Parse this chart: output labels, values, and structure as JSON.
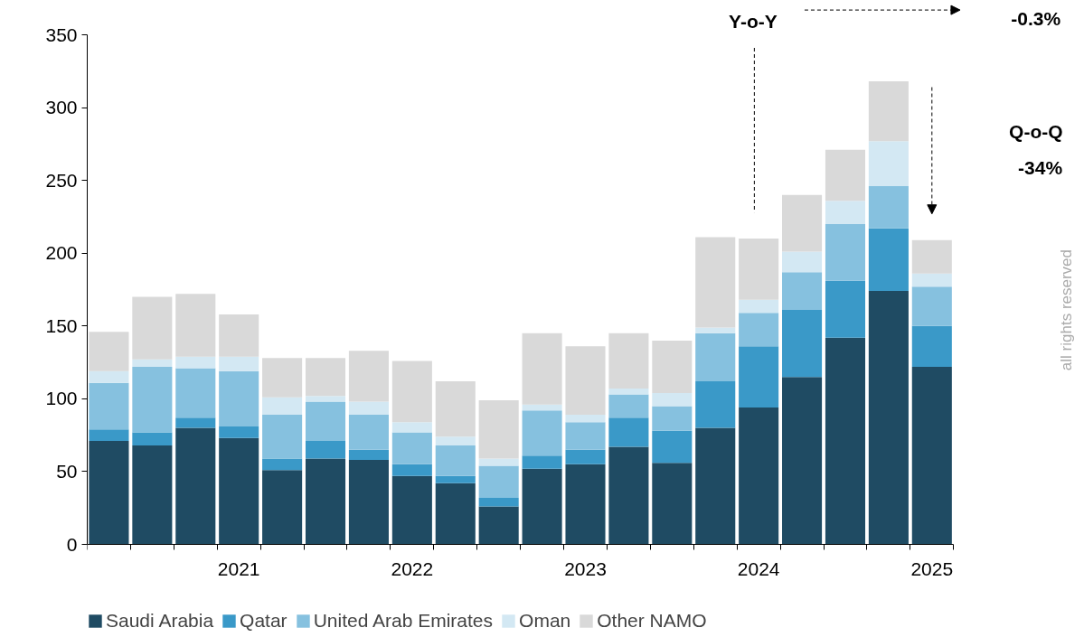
{
  "chart_data": {
    "type": "bar",
    "stacked": true,
    "categories": [
      null,
      null,
      null,
      "2021",
      null,
      null,
      null,
      "2022",
      null,
      null,
      null,
      "2023",
      null,
      null,
      null,
      "2024",
      null,
      null,
      null,
      "2025"
    ],
    "series": [
      {
        "name": "Saudi Arabia",
        "color": "#1f4b63",
        "values": [
          71,
          68,
          80,
          73,
          51,
          59,
          58,
          47,
          42,
          26,
          52,
          55,
          67,
          56,
          80,
          94,
          115,
          142,
          174,
          122
        ]
      },
      {
        "name": "Qatar",
        "color": "#3a99c8",
        "values": [
          8,
          9,
          7,
          8,
          8,
          12,
          7,
          8,
          5,
          6,
          9,
          10,
          20,
          22,
          32,
          42,
          46,
          39,
          43,
          28
        ]
      },
      {
        "name": "United Arab Emirates",
        "color": "#86c1df",
        "values": [
          32,
          45,
          34,
          38,
          30,
          27,
          24,
          22,
          21,
          22,
          31,
          19,
          16,
          17,
          33,
          23,
          26,
          39,
          29,
          27
        ]
      },
      {
        "name": "Oman",
        "color": "#d3e8f3",
        "values": [
          8,
          5,
          8,
          10,
          12,
          4,
          9,
          7,
          6,
          5,
          4,
          5,
          4,
          9,
          4,
          9,
          14,
          16,
          31,
          9
        ]
      },
      {
        "name": "Other NAMO",
        "color": "#d9d9d9",
        "values": [
          27,
          43,
          43,
          29,
          27,
          26,
          35,
          42,
          38,
          40,
          49,
          47,
          38,
          36,
          62,
          42,
          39,
          35,
          41,
          23
        ]
      }
    ],
    "ylim": [
      0,
      350
    ],
    "yticks": [
      0,
      50,
      100,
      150,
      200,
      250,
      300,
      350
    ],
    "grid": false,
    "legend": "bottom",
    "annotations": [
      "Y-o-Y",
      "-0.3%",
      "Q-o-Q",
      "-34%",
      "all rights reserved"
    ]
  }
}
